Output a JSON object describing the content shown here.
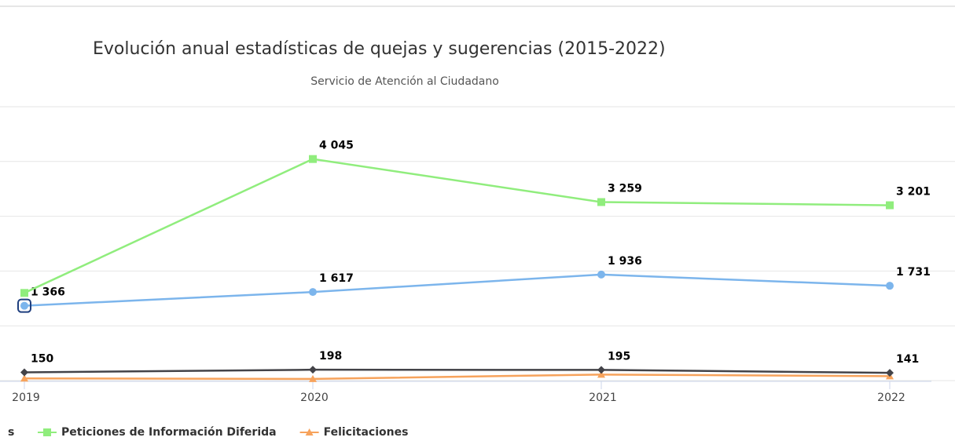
{
  "chart_data": {
    "type": "line",
    "title": "Evolución anual estadísticas de quejas y sugerencias (2015-2022)",
    "subtitle": "Servicio de Atención al Ciudadano",
    "categories": [
      "2019",
      "2020",
      "2021",
      "2022"
    ],
    "ylim": [
      0,
      5000
    ],
    "yticks": [
      0,
      1000,
      2000,
      3000,
      4000,
      5000
    ],
    "grid": true,
    "legend_fragment": "s",
    "series": [
      {
        "color": "#7cb5ec",
        "marker": "circle",
        "values": [
          1366,
          1617,
          1936,
          1731
        ],
        "value_labels": [
          "1 366",
          "1 617",
          "1 936",
          "1 731"
        ]
      },
      {
        "name": "Peticiones de Información Diferida",
        "color": "#90ed7d",
        "marker": "square",
        "values": [
          1600,
          4045,
          3259,
          3201
        ],
        "value_labels": [
          null,
          "4 045",
          "3 259",
          "3 201"
        ]
      },
      {
        "color": "#434348",
        "marker": "diamond",
        "values": [
          150,
          198,
          195,
          141
        ],
        "value_labels": [
          "150",
          "198",
          "195",
          "141"
        ]
      },
      {
        "name": "Felicitaciones",
        "color": "#f7a35c",
        "marker": "triangle",
        "values": [
          40,
          30,
          110,
          80
        ]
      }
    ]
  }
}
